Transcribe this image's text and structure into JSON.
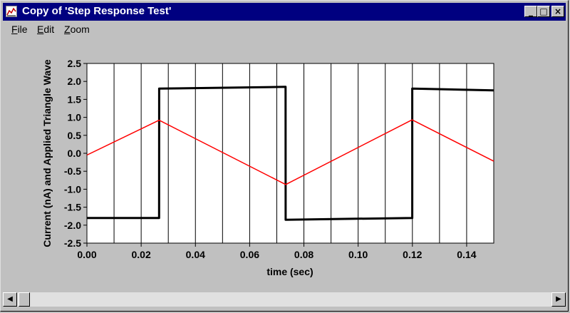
{
  "window": {
    "title": "Copy of 'Step Response Test'",
    "minimize_glyph": "_",
    "maximize_glyph": "□",
    "close_glyph": "×",
    "icon": "chart-app-icon"
  },
  "menu": {
    "items": [
      {
        "label": "File",
        "accel": "F",
        "rest": "ile"
      },
      {
        "label": "Edit",
        "accel": "E",
        "rest": "dit"
      },
      {
        "label": "Zoom",
        "accel": "Z",
        "rest": "oom"
      }
    ]
  },
  "scrollbar": {
    "left_glyph": "◀",
    "right_glyph": "▶"
  },
  "chart_data": {
    "type": "line",
    "title": "",
    "xlabel": "time (sec)",
    "ylabel": "Current (nA) and Applied Triangle Wave",
    "xlim": [
      0,
      0.15
    ],
    "ylim": [
      -2.5,
      2.5
    ],
    "grid": "vertical",
    "x_ticks": [
      "0.00",
      "0.02",
      "0.04",
      "0.06",
      "0.08",
      "0.10",
      "0.12",
      "0.14"
    ],
    "y_ticks": [
      "2.5",
      "2.0",
      "1.5",
      "1.0",
      "0.5",
      "0.0",
      "-0.5",
      "-1.0",
      "-1.5",
      "-2.0",
      "-2.5"
    ],
    "series": [
      {
        "color": "#000000",
        "x": [
          0.0,
          0.02662,
          0.02663,
          0.07325,
          0.07326,
          0.11994,
          0.11995,
          0.15
        ],
        "y": [
          -1.8,
          -1.8,
          1.8,
          1.85,
          -1.85,
          -1.8,
          1.8,
          1.75
        ]
      },
      {
        "color": "#ff0000",
        "x": [
          0.0,
          0.0266,
          0.0733,
          0.1199,
          0.15
        ],
        "y": [
          -0.05,
          0.92,
          -0.87,
          0.93,
          -0.22
        ]
      }
    ]
  }
}
